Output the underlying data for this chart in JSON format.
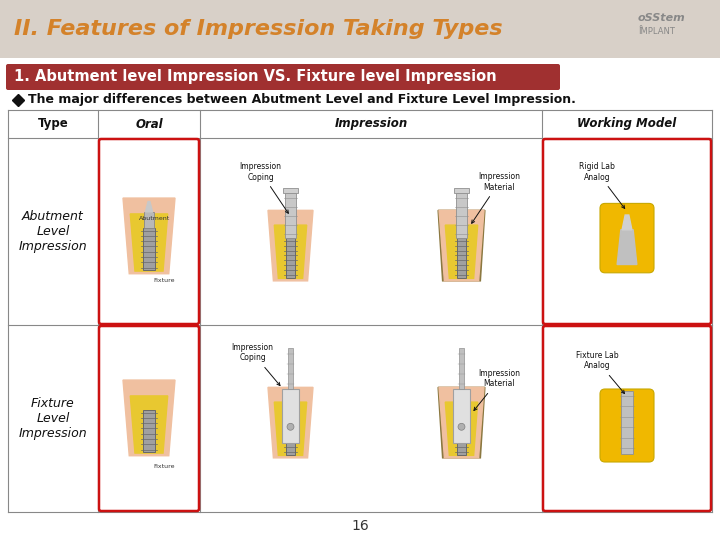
{
  "title": "II. Features of Impression Taking Types",
  "title_color": "#D4822A",
  "title_fontsize": 18,
  "subtitle": "1. Abutment level Impression VS. Fixture level Impression",
  "subtitle_bg": "#A03030",
  "subtitle_color": "#FFFFFF",
  "bullet_text": "The major differences between Abutment Level and Fixture Level Impression.",
  "col_headers": [
    "Type",
    "Oral",
    "Impression",
    "Working Model"
  ],
  "row1_type": "Abutment\nLevel\nImpression",
  "row2_type": "Fixture\nLevel\nImpression",
  "background": "#FFFFFF",
  "title_bar_color": "#D8D0C8",
  "grid_color": "#888888",
  "red_border": "#CC1111",
  "page_number": "16",
  "logo_color": "#888888",
  "gum_outer": "#F0C0A0",
  "bone_yellow": "#E8C830",
  "fixture_gray": "#A0A0A0",
  "fixture_dark": "#686868",
  "imp_material_bg": "#8B7840",
  "wm_yellow": "#F0B800"
}
